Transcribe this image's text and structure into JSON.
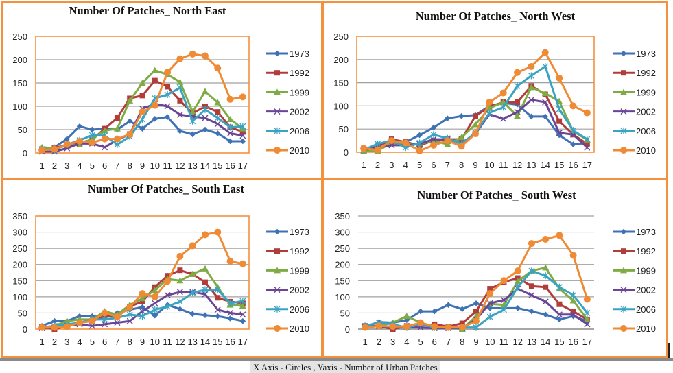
{
  "caption": "X Axis - Circles , Yaxis - Number of Urban Patches",
  "colors": {
    "frame": "#f3913f",
    "grid": "#a0a0a0"
  },
  "series_style": [
    {
      "name": "1973",
      "color": "#3e72b4",
      "marker": "diamond"
    },
    {
      "name": "1992",
      "color": "#b13c3a",
      "marker": "square"
    },
    {
      "name": "1999",
      "color": "#7fab45",
      "marker": "triangle"
    },
    {
      "name": "2002",
      "color": "#6a4596",
      "marker": "x"
    },
    {
      "name": "2006",
      "color": "#3aa3c1",
      "marker": "star"
    },
    {
      "name": "2010",
      "color": "#ef8a35",
      "marker": "circle"
    }
  ],
  "chart_data": [
    {
      "type": "line",
      "title": "Number  Of Patches_  North East",
      "xlabel": "",
      "ylabel": "",
      "categories": [
        "1",
        "2",
        "3",
        "4",
        "5",
        "6",
        "7",
        "8",
        "9",
        "10",
        "11",
        "12",
        "13",
        "14",
        "15",
        "16",
        "17"
      ],
      "yticks": [
        "0",
        "50",
        "100",
        "150",
        "200",
        "250"
      ],
      "ylim": [
        0,
        250
      ],
      "grid": true,
      "legend": "right",
      "plot_border": true,
      "series": [
        {
          "name": "1973",
          "values": [
            5,
            12,
            30,
            57,
            50,
            52,
            50,
            68,
            52,
            73,
            77,
            47,
            40,
            50,
            42,
            25,
            25
          ]
        },
        {
          "name": "1992",
          "values": [
            8,
            10,
            18,
            22,
            28,
            52,
            75,
            117,
            123,
            155,
            142,
            112,
            85,
            100,
            88,
            55,
            45
          ]
        },
        {
          "name": "1999",
          "values": [
            12,
            10,
            15,
            18,
            30,
            48,
            52,
            112,
            150,
            177,
            168,
            152,
            88,
            132,
            108,
            72,
            52
          ]
        },
        {
          "name": "2002",
          "values": [
            3,
            3,
            10,
            20,
            20,
            12,
            28,
            40,
            95,
            105,
            100,
            82,
            78,
            75,
            62,
            42,
            37
          ]
        },
        {
          "name": "2006",
          "values": [
            8,
            6,
            18,
            27,
            38,
            37,
            18,
            35,
            72,
            117,
            125,
            140,
            68,
            93,
            75,
            55,
            57
          ]
        },
        {
          "name": "2010",
          "values": [
            6,
            8,
            18,
            25,
            22,
            30,
            30,
            40,
            88,
            102,
            173,
            202,
            212,
            208,
            182,
            115,
            120
          ]
        }
      ]
    },
    {
      "type": "line",
      "title": "Number  Of Patches_  North West",
      "xlabel": "",
      "ylabel": "",
      "categories": [
        "1",
        "2",
        "3",
        "4",
        "5",
        "6",
        "7",
        "8",
        "9",
        "10",
        "11",
        "12",
        "13",
        "14",
        "15",
        "16",
        "17"
      ],
      "yticks": [
        "0",
        "50",
        "100",
        "150",
        "200",
        "250"
      ],
      "ylim": [
        0,
        250
      ],
      "grid": true,
      "legend": "right",
      "plot_border": true,
      "series": [
        {
          "name": "1973",
          "values": [
            5,
            17,
            25,
            22,
            37,
            53,
            73,
            78,
            80,
            100,
            106,
            103,
            77,
            77,
            37,
            17,
            20
          ]
        },
        {
          "name": "1992",
          "values": [
            8,
            12,
            28,
            22,
            15,
            25,
            28,
            28,
            78,
            98,
            108,
            108,
            143,
            125,
            67,
            38,
            18
          ]
        },
        {
          "name": "1999",
          "values": [
            3,
            3,
            20,
            18,
            18,
            25,
            17,
            32,
            60,
            95,
            108,
            78,
            140,
            127,
            110,
            45,
            27
          ]
        },
        {
          "name": "2002",
          "values": [
            5,
            10,
            15,
            15,
            18,
            28,
            28,
            20,
            40,
            82,
            72,
            87,
            113,
            108,
            42,
            38,
            10
          ]
        },
        {
          "name": "2006",
          "values": [
            5,
            18,
            25,
            10,
            20,
            38,
            30,
            18,
            42,
            85,
            97,
            143,
            165,
            185,
            93,
            47,
            28
          ]
        },
        {
          "name": "2010",
          "values": [
            8,
            5,
            25,
            20,
            3,
            15,
            25,
            13,
            40,
            108,
            128,
            172,
            185,
            215,
            160,
            100,
            85
          ]
        }
      ]
    },
    {
      "type": "line",
      "title": "Number  Of Patches_  South East",
      "xlabel": "",
      "ylabel": "",
      "categories": [
        "1",
        "2",
        "3",
        "4",
        "5",
        "6",
        "7",
        "8",
        "9",
        "10",
        "11",
        "12",
        "13",
        "14",
        "15",
        "16",
        "17"
      ],
      "yticks": [
        "0",
        "50",
        "100",
        "150",
        "200",
        "250",
        "300",
        "350"
      ],
      "ylim": [
        0,
        350
      ],
      "grid": true,
      "legend": "right",
      "plot_border": true,
      "series": [
        {
          "name": "1973",
          "values": [
            10,
            25,
            25,
            40,
            40,
            40,
            50,
            60,
            68,
            42,
            75,
            62,
            47,
            43,
            40,
            33,
            25
          ]
        },
        {
          "name": "1992",
          "values": [
            8,
            0,
            10,
            20,
            25,
            40,
            40,
            70,
            85,
            130,
            165,
            182,
            170,
            145,
            97,
            85,
            80
          ]
        },
        {
          "name": "1999",
          "values": [
            5,
            10,
            25,
            30,
            30,
            55,
            45,
            75,
            95,
            120,
            155,
            150,
            170,
            187,
            130,
            75,
            72
          ]
        },
        {
          "name": "2002",
          "values": [
            3,
            5,
            10,
            15,
            10,
            15,
            20,
            25,
            55,
            80,
            105,
            115,
            115,
            108,
            60,
            50,
            45
          ]
        },
        {
          "name": "2006",
          "values": [
            5,
            10,
            15,
            20,
            30,
            30,
            35,
            45,
            40,
            60,
            70,
            85,
            112,
            122,
            122,
            80,
            87
          ]
        },
        {
          "name": "2010",
          "values": [
            5,
            5,
            8,
            20,
            25,
            50,
            38,
            68,
            110,
            100,
            148,
            225,
            258,
            292,
            300,
            210,
            202
          ]
        }
      ]
    },
    {
      "type": "line",
      "title": "Number  Of Patches_  South West",
      "xlabel": "",
      "ylabel": "",
      "categories": [
        "1",
        "2",
        "3",
        "4",
        "5",
        "6",
        "7",
        "8",
        "9",
        "10",
        "11",
        "12",
        "13",
        "14",
        "15",
        "16",
        "17"
      ],
      "yticks": [
        "0",
        "50",
        "100",
        "150",
        "200",
        "250",
        "300",
        "350"
      ],
      "ylim": [
        0,
        350
      ],
      "grid": true,
      "legend": "right",
      "plot_border": false,
      "series": [
        {
          "name": "1973",
          "values": [
            8,
            22,
            20,
            28,
            55,
            55,
            75,
            62,
            80,
            65,
            65,
            65,
            55,
            45,
            30,
            40,
            25
          ]
        },
        {
          "name": "1992",
          "values": [
            10,
            10,
            0,
            10,
            10,
            15,
            8,
            18,
            55,
            125,
            145,
            158,
            133,
            130,
            77,
            55,
            30
          ]
        },
        {
          "name": "1999",
          "values": [
            5,
            10,
            20,
            40,
            20,
            5,
            5,
            0,
            40,
            78,
            75,
            148,
            180,
            190,
            125,
            88,
            30
          ]
        },
        {
          "name": "2002",
          "values": [
            5,
            10,
            5,
            5,
            5,
            3,
            3,
            3,
            30,
            80,
            90,
            125,
            105,
            85,
            45,
            45,
            15
          ]
        },
        {
          "name": "2006",
          "values": [
            10,
            20,
            15,
            5,
            15,
            5,
            5,
            5,
            5,
            38,
            60,
            130,
            180,
            165,
            130,
            105,
            50
          ]
        },
        {
          "name": "2010",
          "values": [
            5,
            10,
            8,
            8,
            20,
            8,
            5,
            5,
            25,
            110,
            150,
            180,
            265,
            278,
            290,
            228,
            92
          ]
        }
      ]
    }
  ]
}
